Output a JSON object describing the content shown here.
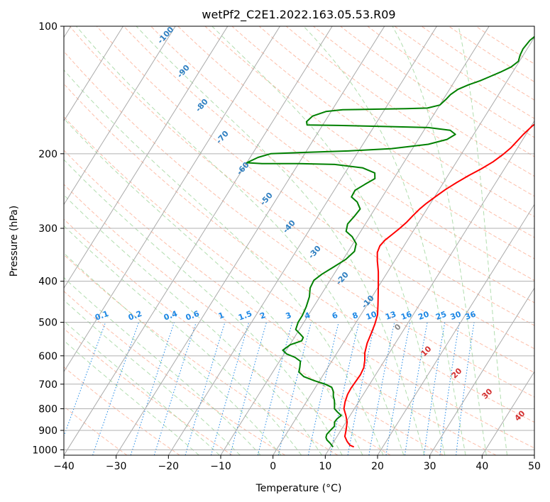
{
  "chart_data": {
    "type": "line",
    "subtype": "skew-T log-P diagram",
    "title": "wetPf2_C2E1.2022.163.05.53.R09",
    "xlabel": "Temperature (°C)",
    "ylabel": "Pressure (hPa)",
    "xlim": [
      -40,
      50
    ],
    "ylim": [
      1030,
      100
    ],
    "y_scale": "log",
    "x_ticks": [
      "−40",
      "−30",
      "−20",
      "−10",
      "0",
      "10",
      "20",
      "30",
      "40",
      "50"
    ],
    "y_ticks": [
      "100",
      "200",
      "300",
      "400",
      "500",
      "600",
      "700",
      "800",
      "900",
      "1000"
    ],
    "grid": true,
    "series": [
      {
        "key": "temperature",
        "color": "#ff0000",
        "points": [
          [
            14.5,
            985
          ],
          [
            13.5,
            975
          ],
          [
            12.5,
            955
          ],
          [
            11.5,
            930
          ],
          [
            11.0,
            900
          ],
          [
            10.2,
            860
          ],
          [
            9.2,
            830
          ],
          [
            8.0,
            800
          ],
          [
            7.4,
            770
          ],
          [
            7.0,
            740
          ],
          [
            6.9,
            715
          ],
          [
            7.0,
            690
          ],
          [
            7.1,
            665
          ],
          [
            6.9,
            640
          ],
          [
            6.2,
            615
          ],
          [
            5.3,
            590
          ],
          [
            4.6,
            560
          ],
          [
            4.2,
            530
          ],
          [
            3.8,
            505
          ],
          [
            3.2,
            480
          ],
          [
            2.1,
            455
          ],
          [
            0.9,
            430
          ],
          [
            -0.4,
            405
          ],
          [
            -1.8,
            380
          ],
          [
            -3.3,
            358
          ],
          [
            -4.3,
            342
          ],
          [
            -4.6,
            330
          ],
          [
            -4.3,
            320
          ],
          [
            -3.6,
            310
          ],
          [
            -2.9,
            300
          ],
          [
            -2.3,
            290
          ],
          [
            -1.9,
            280
          ],
          [
            -1.4,
            270
          ],
          [
            -0.8,
            262
          ],
          [
            0.2,
            252
          ],
          [
            1.2,
            243
          ],
          [
            2.5,
            234
          ],
          [
            4.0,
            225
          ],
          [
            5.6,
            217
          ],
          [
            7.0,
            209
          ],
          [
            8.0,
            201
          ],
          [
            8.7,
            194
          ],
          [
            9.1,
            187
          ],
          [
            9.5,
            180
          ],
          [
            10.2,
            172
          ],
          [
            11.1,
            166
          ],
          [
            12.1,
            160
          ],
          [
            13.0,
            154
          ],
          [
            13.8,
            148
          ],
          [
            14.6,
            143
          ],
          [
            15.6,
            138
          ],
          [
            16.7,
            133
          ],
          [
            17.5,
            127
          ],
          [
            17.9,
            121
          ],
          [
            18.5,
            115
          ],
          [
            19.8,
            111
          ],
          [
            20.8,
            108
          ],
          [
            21.6,
            104
          ],
          [
            22.3,
            100
          ]
        ]
      },
      {
        "key": "dewpoint",
        "color": "#008000",
        "points": [
          [
            10.5,
            985
          ],
          [
            9.5,
            965
          ],
          [
            8.5,
            948
          ],
          [
            8.0,
            935
          ],
          [
            7.8,
            920
          ],
          [
            8.0,
            900
          ],
          [
            8.3,
            880
          ],
          [
            7.8,
            860
          ],
          [
            7.9,
            845
          ],
          [
            8.3,
            830
          ],
          [
            7.2,
            815
          ],
          [
            6.2,
            800
          ],
          [
            5.8,
            785
          ],
          [
            5.2,
            765
          ],
          [
            4.5,
            748
          ],
          [
            3.9,
            728
          ],
          [
            3.1,
            712
          ],
          [
            1.5,
            700
          ],
          [
            -1.0,
            687
          ],
          [
            -3.5,
            672
          ],
          [
            -5.0,
            655
          ],
          [
            -5.4,
            638
          ],
          [
            -6.0,
            618
          ],
          [
            -7.5,
            605
          ],
          [
            -9.5,
            594
          ],
          [
            -10.7,
            582
          ],
          [
            -9.9,
            565
          ],
          [
            -8.2,
            553
          ],
          [
            -8.3,
            543
          ],
          [
            -9.2,
            534
          ],
          [
            -10.7,
            520
          ],
          [
            -11.1,
            500
          ],
          [
            -11.1,
            482
          ],
          [
            -11.4,
            460
          ],
          [
            -12.0,
            435
          ],
          [
            -12.9,
            415
          ],
          [
            -13.1,
            398
          ],
          [
            -12.3,
            385
          ],
          [
            -10.9,
            370
          ],
          [
            -9.5,
            355
          ],
          [
            -8.8,
            340
          ],
          [
            -9.4,
            326
          ],
          [
            -11.0,
            314
          ],
          [
            -12.8,
            305
          ],
          [
            -13.4,
            293
          ],
          [
            -13.0,
            280
          ],
          [
            -12.8,
            270
          ],
          [
            -14.2,
            260
          ],
          [
            -15.9,
            253
          ],
          [
            -16.0,
            244
          ],
          [
            -14.8,
            236
          ],
          [
            -13.6,
            229
          ],
          [
            -14.3,
            222
          ],
          [
            -17.2,
            216
          ],
          [
            -23.0,
            212
          ],
          [
            -30.0,
            211
          ],
          [
            -37.0,
            211
          ],
          [
            -40.0,
            210
          ],
          [
            -38.5,
            204
          ],
          [
            -36.5,
            200
          ],
          [
            -30.0,
            198.5
          ],
          [
            -22.0,
            197
          ],
          [
            -14.0,
            194.5
          ],
          [
            -7.5,
            190
          ],
          [
            -4.5,
            185
          ],
          [
            -3.5,
            180
          ],
          [
            -5.0,
            176
          ],
          [
            -9.5,
            173.5
          ],
          [
            -18.0,
            172.5
          ],
          [
            -27.0,
            171.5
          ],
          [
            -33.0,
            171
          ],
          [
            -33.5,
            168
          ],
          [
            -33.0,
            163
          ],
          [
            -31.0,
            159
          ],
          [
            -28.0,
            157.5
          ],
          [
            -22.0,
            157
          ],
          [
            -16.0,
            156.5
          ],
          [
            -12.0,
            156
          ],
          [
            -10.0,
            153.5
          ],
          [
            -9.5,
            149
          ],
          [
            -9.2,
            145
          ],
          [
            -8.4,
            141
          ],
          [
            -6.9,
            137.5
          ],
          [
            -5.2,
            134.5
          ],
          [
            -3.8,
            131.5
          ],
          [
            -2.3,
            128.3
          ],
          [
            -0.9,
            124.7
          ],
          [
            -0.2,
            121
          ],
          [
            -0.6,
            117
          ],
          [
            -0.8,
            113
          ],
          [
            -0.5,
            108
          ],
          [
            0.3,
            104
          ],
          [
            1.0,
            100
          ]
        ]
      }
    ],
    "reference_lines": {
      "dry_adiabat_labels": [
        "-100",
        "-90",
        "-80",
        "-70",
        "-60",
        "-50",
        "-40",
        "-30",
        "-20",
        "-10"
      ],
      "mixing_ratio_labels": [
        "0.1",
        "0.2",
        "0.4",
        "0.6",
        "1",
        "1.5",
        "2",
        "3",
        "4",
        "6",
        "8",
        "10",
        "13",
        "16",
        "20",
        "25",
        "30",
        "36"
      ],
      "moist_adiabat_labels": [
        "0",
        "10",
        "20",
        "30",
        "40"
      ]
    }
  }
}
